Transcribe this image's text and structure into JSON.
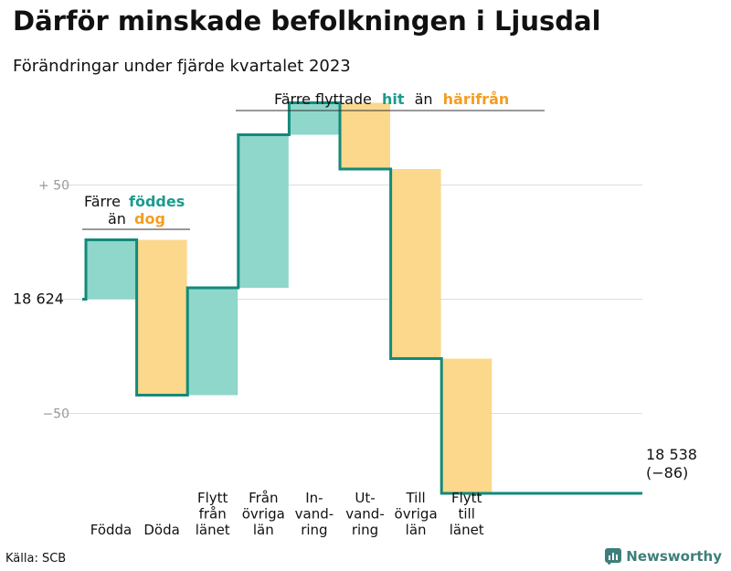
{
  "title": "Därför minskade befolkningen i Ljusdal",
  "subtitle": "Förändringar under fjärde kvartalet 2023",
  "source": "Källa: SCB",
  "brand": "Newsworthy",
  "colors": {
    "increase": "#8fd6cb",
    "decrease": "#fbd88c",
    "line": "#128a7a",
    "teal_text": "#1a9c8c",
    "orange_text": "#f59d20",
    "grid": "#dddddd",
    "tick": "#999999"
  },
  "annotations": {
    "births": {
      "l1": "Färre",
      "l1b": "föddes",
      "l2": "än",
      "l2b": "dog"
    },
    "moves": {
      "a": "Färre flyttade",
      "b": "hit",
      "c": "än",
      "d": "härifrån"
    }
  },
  "chart_data": {
    "type": "waterfall",
    "start": {
      "label": "18 624",
      "value": 18624
    },
    "end": {
      "label1": "18 538",
      "label2": "(−86)",
      "value": 18538,
      "change": -86
    },
    "y_ticks": [
      {
        "label": "+ 50",
        "value": 50
      },
      {
        "label": "18  624",
        "value": 0
      },
      {
        "label": "−50",
        "value": -50
      }
    ],
    "ylim": [
      -81,
      85
    ],
    "steps": [
      {
        "label": [
          "Födda"
        ],
        "change": 26
      },
      {
        "label": [
          "Döda"
        ],
        "change": -68
      },
      {
        "label": [
          "Flytt",
          "från",
          "länet"
        ],
        "change": 47
      },
      {
        "label": [
          "Från",
          "övriga",
          "län"
        ],
        "change": 67
      },
      {
        "label": [
          "In-",
          "vand-",
          "ring"
        ],
        "change": 14
      },
      {
        "label": [
          "Ut-",
          "vand-",
          "ring"
        ],
        "change": -29
      },
      {
        "label": [
          "Till",
          "övriga",
          "län"
        ],
        "change": -83
      },
      {
        "label": [
          "Flytt",
          "till",
          "länet"
        ],
        "change": -59
      }
    ]
  }
}
